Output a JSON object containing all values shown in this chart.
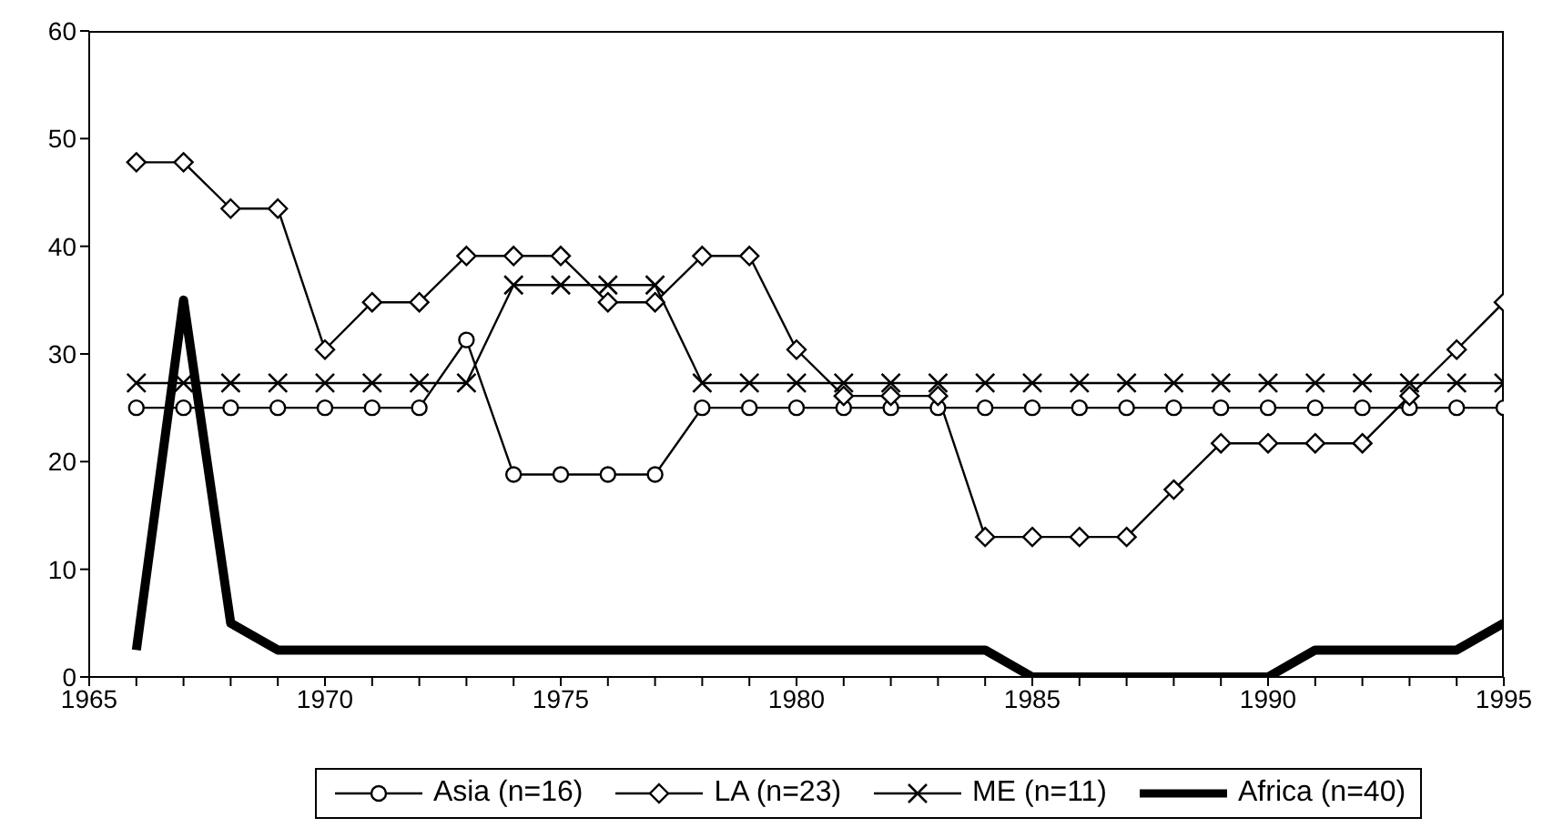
{
  "chart_data": {
    "type": "line",
    "x": [
      1966,
      1967,
      1968,
      1969,
      1970,
      1971,
      1972,
      1973,
      1974,
      1975,
      1976,
      1977,
      1978,
      1979,
      1980,
      1981,
      1982,
      1983,
      1984,
      1985,
      1986,
      1987,
      1988,
      1989,
      1990,
      1991,
      1992,
      1993,
      1994,
      1995
    ],
    "series": [
      {
        "name": "Asia (n=16)",
        "color": "#000000",
        "marker": "circle",
        "values": [
          25,
          25,
          25,
          25,
          25,
          25,
          25,
          31.3,
          18.8,
          18.8,
          18.8,
          18.8,
          25,
          25,
          25,
          25,
          25,
          25,
          25,
          25,
          25,
          25,
          25,
          25,
          25,
          25,
          25,
          25,
          25,
          25
        ]
      },
      {
        "name": "LA (n=23)",
        "color": "#000000",
        "marker": "diamond",
        "values": [
          47.8,
          47.8,
          43.5,
          43.5,
          30.4,
          34.8,
          34.8,
          39.1,
          39.1,
          39.1,
          34.8,
          34.8,
          39.1,
          39.1,
          30.4,
          26.1,
          26.1,
          26.1,
          13,
          13,
          13,
          13,
          17.4,
          21.7,
          21.7,
          21.7,
          21.7,
          26.1,
          30.4,
          34.8
        ]
      },
      {
        "name": "ME (n=11)",
        "color": "#000000",
        "marker": "cross",
        "values": [
          27.3,
          27.3,
          27.3,
          27.3,
          27.3,
          27.3,
          27.3,
          27.3,
          36.4,
          36.4,
          36.4,
          36.4,
          27.3,
          27.3,
          27.3,
          27.3,
          27.3,
          27.3,
          27.3,
          27.3,
          27.3,
          27.3,
          27.3,
          27.3,
          27.3,
          27.3,
          27.3,
          27.3,
          27.3,
          27.3
        ]
      },
      {
        "name": "Africa (n=40)",
        "color": "#000000",
        "marker": "none",
        "values": [
          2.5,
          35,
          5,
          2.5,
          2.5,
          2.5,
          2.5,
          2.5,
          2.5,
          2.5,
          2.5,
          2.5,
          2.5,
          2.5,
          2.5,
          2.5,
          2.5,
          2.5,
          2.5,
          0,
          0,
          0,
          0,
          0,
          0,
          2.5,
          2.5,
          2.5,
          2.5,
          5
        ]
      }
    ],
    "xlim": [
      1965,
      1995
    ],
    "xticks": [
      1965,
      {
        "value": 1966,
        "label": null
      },
      {
        "value": 1967,
        "label": null
      },
      {
        "value": 1968,
        "label": null
      },
      {
        "value": 1969,
        "label": null
      },
      1970,
      {
        "value": 1971,
        "label": null
      },
      {
        "value": 1972,
        "label": null
      },
      {
        "value": 1973,
        "label": null
      },
      {
        "value": 1974,
        "label": null
      },
      1975,
      {
        "value": 1976,
        "label": null
      },
      {
        "value": 1977,
        "label": null
      },
      {
        "value": 1978,
        "label": null
      },
      {
        "value": 1979,
        "label": null
      },
      1980,
      {
        "value": 1981,
        "label": null
      },
      {
        "value": 1982,
        "label": null
      },
      {
        "value": 1983,
        "label": null
      },
      {
        "value": 1984,
        "label": null
      },
      1985,
      {
        "value": 1986,
        "label": null
      },
      {
        "value": 1987,
        "label": null
      },
      {
        "value": 1988,
        "label": null
      },
      {
        "value": 1989,
        "label": null
      },
      1990,
      {
        "value": 1991,
        "label": null
      },
      {
        "value": 1992,
        "label": null
      },
      {
        "value": 1993,
        "label": null
      },
      {
        "value": 1994,
        "label": null
      },
      1995
    ],
    "ylim": [
      0,
      60
    ],
    "yticks": [
      0,
      10,
      20,
      30,
      40,
      50,
      60
    ],
    "grid": false,
    "legend": "bottom",
    "line_style": "solid"
  }
}
